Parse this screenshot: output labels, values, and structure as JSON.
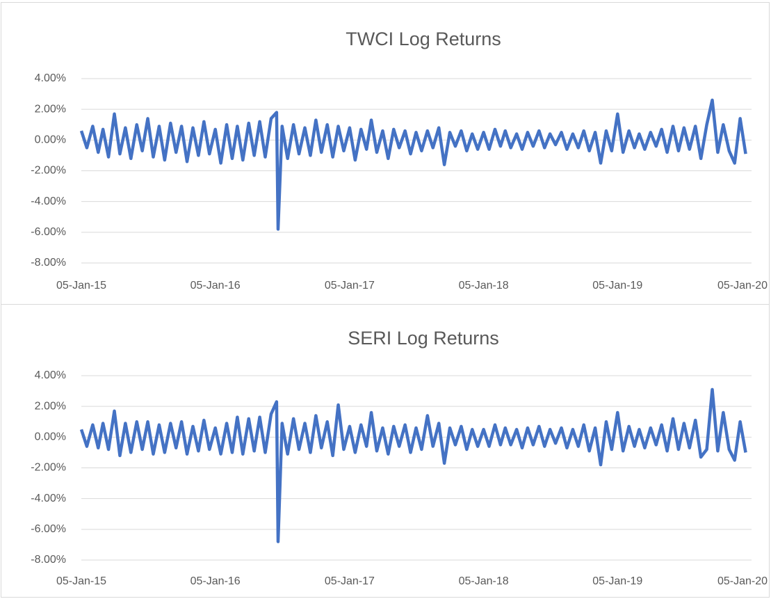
{
  "chart_data": [
    {
      "type": "line",
      "title": "TWCI Log Returns",
      "color": "#4472c4",
      "x": [
        "2015-01-05",
        "2015-01-20",
        "2015-02-05",
        "2015-02-20",
        "2015-03-05",
        "2015-03-20",
        "2015-04-05",
        "2015-04-20",
        "2015-05-05",
        "2015-05-20",
        "2015-06-05",
        "2015-06-20",
        "2015-07-05",
        "2015-07-20",
        "2015-08-05",
        "2015-08-20",
        "2015-09-05",
        "2015-09-20",
        "2015-10-05",
        "2015-10-20",
        "2015-11-05",
        "2015-11-20",
        "2015-12-05",
        "2015-12-20",
        "2016-01-05",
        "2016-01-20",
        "2016-02-05",
        "2016-02-20",
        "2016-03-05",
        "2016-03-20",
        "2016-04-05",
        "2016-04-20",
        "2016-05-05",
        "2016-05-20",
        "2016-06-05",
        "2016-06-20",
        "2016-06-24",
        "2016-07-05",
        "2016-07-20",
        "2016-08-05",
        "2016-08-20",
        "2016-09-05",
        "2016-09-20",
        "2016-10-05",
        "2016-10-20",
        "2016-11-05",
        "2016-11-20",
        "2016-12-05",
        "2016-12-20",
        "2017-01-05",
        "2017-01-20",
        "2017-02-05",
        "2017-02-20",
        "2017-03-05",
        "2017-03-20",
        "2017-04-05",
        "2017-04-20",
        "2017-05-05",
        "2017-05-20",
        "2017-06-05",
        "2017-06-20",
        "2017-07-05",
        "2017-07-20",
        "2017-08-05",
        "2017-08-20",
        "2017-09-05",
        "2017-09-20",
        "2017-10-05",
        "2017-10-20",
        "2017-11-05",
        "2017-11-20",
        "2017-12-05",
        "2017-12-20",
        "2018-01-05",
        "2018-01-20",
        "2018-02-05",
        "2018-02-20",
        "2018-03-05",
        "2018-03-20",
        "2018-04-05",
        "2018-04-20",
        "2018-05-05",
        "2018-05-20",
        "2018-06-05",
        "2018-06-20",
        "2018-07-05",
        "2018-07-20",
        "2018-08-05",
        "2018-08-20",
        "2018-09-05",
        "2018-09-20",
        "2018-10-05",
        "2018-10-20",
        "2018-11-05",
        "2018-11-20",
        "2018-12-05",
        "2018-12-20",
        "2019-01-05",
        "2019-01-20",
        "2019-02-05",
        "2019-02-20",
        "2019-03-05",
        "2019-03-20",
        "2019-04-05",
        "2019-04-20",
        "2019-05-05",
        "2019-05-20",
        "2019-06-05",
        "2019-06-20",
        "2019-07-05",
        "2019-07-20",
        "2019-08-05",
        "2019-08-20",
        "2019-09-05",
        "2019-09-20",
        "2019-10-05",
        "2019-10-20",
        "2019-11-05",
        "2019-11-20",
        "2019-12-05",
        "2019-12-20"
      ],
      "values": [
        0.6,
        -0.5,
        0.9,
        -0.8,
        0.7,
        -1.1,
        1.7,
        -0.9,
        0.8,
        -1.2,
        1.0,
        -0.7,
        1.4,
        -1.1,
        0.9,
        -1.3,
        1.1,
        -0.8,
        0.9,
        -1.4,
        0.8,
        -1.0,
        1.2,
        -0.9,
        0.7,
        -1.5,
        1.0,
        -1.2,
        0.9,
        -1.3,
        1.1,
        -1.0,
        1.2,
        -1.1,
        1.4,
        1.8,
        -5.8,
        0.9,
        -1.2,
        1.0,
        -0.9,
        0.8,
        -1.0,
        1.3,
        -0.8,
        1.0,
        -1.1,
        0.9,
        -0.7,
        0.8,
        -1.3,
        0.7,
        -0.6,
        1.3,
        -0.8,
        0.6,
        -1.2,
        0.7,
        -0.5,
        0.6,
        -0.9,
        0.5,
        -0.7,
        0.6,
        -0.5,
        0.8,
        -1.6,
        0.5,
        -0.4,
        0.6,
        -0.7,
        0.4,
        -0.6,
        0.5,
        -0.6,
        0.7,
        -0.4,
        0.6,
        -0.5,
        0.4,
        -0.6,
        0.5,
        -0.4,
        0.6,
        -0.5,
        0.4,
        -0.3,
        0.5,
        -0.6,
        0.4,
        -0.5,
        0.6,
        -0.7,
        0.5,
        -1.5,
        0.6,
        -0.7,
        1.7,
        -0.8,
        0.6,
        -0.5,
        0.4,
        -0.6,
        0.5,
        -0.4,
        0.7,
        -0.8,
        0.9,
        -0.7,
        0.8,
        -0.6,
        0.9,
        -1.2,
        1.0,
        2.6,
        -0.8,
        1.0,
        -0.7,
        -1.5,
        1.4,
        -0.9
      ],
      "xlim": [
        "2015-01-05",
        "2020-01-05"
      ],
      "xticks": [
        {
          "value": "2015-01-05",
          "label": "05-Jan-15"
        },
        {
          "value": "2016-01-05",
          "label": "05-Jan-16"
        },
        {
          "value": "2017-01-05",
          "label": "05-Jan-17"
        },
        {
          "value": "2018-01-05",
          "label": "05-Jan-18"
        },
        {
          "value": "2019-01-05",
          "label": "05-Jan-19"
        },
        {
          "value": "2020-01-05",
          "label": "05-Jan-20"
        }
      ],
      "ylim": [
        -8,
        4
      ],
      "yticks": [
        {
          "value": -8,
          "label": "-8.00%"
        },
        {
          "value": -6,
          "label": "-6.00%"
        },
        {
          "value": -4,
          "label": "-4.00%"
        },
        {
          "value": -2,
          "label": "-2.00%"
        },
        {
          "value": 0,
          "label": "0.00%"
        },
        {
          "value": 2,
          "label": "2.00%"
        },
        {
          "value": 4,
          "label": "4.00%"
        }
      ],
      "grid": true
    },
    {
      "type": "line",
      "title": "SERI Log Returns",
      "color": "#4472c4",
      "x": [
        "2015-01-05",
        "2015-01-20",
        "2015-02-05",
        "2015-02-20",
        "2015-03-05",
        "2015-03-20",
        "2015-04-05",
        "2015-04-20",
        "2015-05-05",
        "2015-05-20",
        "2015-06-05",
        "2015-06-20",
        "2015-07-05",
        "2015-07-20",
        "2015-08-05",
        "2015-08-20",
        "2015-09-05",
        "2015-09-20",
        "2015-10-05",
        "2015-10-20",
        "2015-11-05",
        "2015-11-20",
        "2015-12-05",
        "2015-12-20",
        "2016-01-05",
        "2016-01-20",
        "2016-02-05",
        "2016-02-20",
        "2016-03-05",
        "2016-03-20",
        "2016-04-05",
        "2016-04-20",
        "2016-05-05",
        "2016-05-20",
        "2016-06-05",
        "2016-06-20",
        "2016-06-24",
        "2016-07-05",
        "2016-07-20",
        "2016-08-05",
        "2016-08-20",
        "2016-09-05",
        "2016-09-20",
        "2016-10-05",
        "2016-10-20",
        "2016-11-05",
        "2016-11-20",
        "2016-12-05",
        "2016-12-20",
        "2017-01-05",
        "2017-01-20",
        "2017-02-05",
        "2017-02-20",
        "2017-03-05",
        "2017-03-20",
        "2017-04-05",
        "2017-04-20",
        "2017-05-05",
        "2017-05-20",
        "2017-06-05",
        "2017-06-20",
        "2017-07-05",
        "2017-07-20",
        "2017-08-05",
        "2017-08-20",
        "2017-09-05",
        "2017-09-20",
        "2017-10-05",
        "2017-10-20",
        "2017-11-05",
        "2017-11-20",
        "2017-12-05",
        "2017-12-20",
        "2018-01-05",
        "2018-01-20",
        "2018-02-05",
        "2018-02-20",
        "2018-03-05",
        "2018-03-20",
        "2018-04-05",
        "2018-04-20",
        "2018-05-05",
        "2018-05-20",
        "2018-06-05",
        "2018-06-20",
        "2018-07-05",
        "2018-07-20",
        "2018-08-05",
        "2018-08-20",
        "2018-09-05",
        "2018-09-20",
        "2018-10-05",
        "2018-10-20",
        "2018-11-05",
        "2018-11-20",
        "2018-12-05",
        "2018-12-20",
        "2019-01-05",
        "2019-01-20",
        "2019-02-05",
        "2019-02-20",
        "2019-03-05",
        "2019-03-20",
        "2019-04-05",
        "2019-04-20",
        "2019-05-05",
        "2019-05-20",
        "2019-06-05",
        "2019-06-20",
        "2019-07-05",
        "2019-07-20",
        "2019-08-05",
        "2019-08-20",
        "2019-09-05",
        "2019-09-20",
        "2019-10-05",
        "2019-10-20",
        "2019-11-05",
        "2019-11-20",
        "2019-12-05",
        "2019-12-20"
      ],
      "values": [
        0.5,
        -0.6,
        0.8,
        -0.7,
        0.9,
        -0.8,
        1.7,
        -1.2,
        0.9,
        -1.0,
        1.0,
        -0.8,
        1.0,
        -1.1,
        0.8,
        -1.0,
        0.9,
        -0.7,
        1.0,
        -1.1,
        0.7,
        -0.9,
        1.1,
        -0.8,
        0.6,
        -1.1,
        0.9,
        -1.0,
        1.3,
        -1.1,
        1.2,
        -0.9,
        1.3,
        -1.0,
        1.5,
        2.3,
        -6.8,
        0.9,
        -1.1,
        1.2,
        -0.8,
        0.9,
        -1.0,
        1.4,
        -0.7,
        1.0,
        -1.2,
        2.1,
        -0.8,
        0.7,
        -1.0,
        0.8,
        -0.6,
        1.6,
        -0.9,
        0.6,
        -1.1,
        0.7,
        -0.6,
        0.8,
        -1.0,
        0.6,
        -0.8,
        1.4,
        -0.6,
        0.9,
        -1.7,
        0.6,
        -0.5,
        0.7,
        -0.8,
        0.5,
        -0.6,
        0.5,
        -0.6,
        0.8,
        -0.5,
        0.6,
        -0.5,
        0.5,
        -0.7,
        0.6,
        -0.5,
        0.7,
        -0.6,
        0.5,
        -0.4,
        0.6,
        -0.7,
        0.5,
        -0.6,
        0.8,
        -0.9,
        0.6,
        -1.8,
        1.0,
        -0.8,
        1.6,
        -0.9,
        0.7,
        -0.6,
        0.5,
        -0.7,
        0.6,
        -0.5,
        0.8,
        -0.9,
        1.2,
        -0.8,
        0.9,
        -0.7,
        1.1,
        -1.3,
        -0.8,
        3.1,
        -0.9,
        1.6,
        -0.8,
        -1.5,
        1.0,
        -1.0
      ],
      "xlim": [
        "2015-01-05",
        "2020-01-05"
      ],
      "xticks": [
        {
          "value": "2015-01-05",
          "label": "05-Jan-15"
        },
        {
          "value": "2016-01-05",
          "label": "05-Jan-16"
        },
        {
          "value": "2017-01-05",
          "label": "05-Jan-17"
        },
        {
          "value": "2018-01-05",
          "label": "05-Jan-18"
        },
        {
          "value": "2019-01-05",
          "label": "05-Jan-19"
        },
        {
          "value": "2020-01-05",
          "label": "05-Jan-20"
        }
      ],
      "ylim": [
        -8,
        4
      ],
      "yticks": [
        {
          "value": -8,
          "label": "-8.00%"
        },
        {
          "value": -6,
          "label": "-6.00%"
        },
        {
          "value": -4,
          "label": "-4.00%"
        },
        {
          "value": -2,
          "label": "-2.00%"
        },
        {
          "value": 0,
          "label": "0.00%"
        },
        {
          "value": 2,
          "label": "2.00%"
        },
        {
          "value": 4,
          "label": "4.00%"
        }
      ],
      "grid": true
    }
  ]
}
